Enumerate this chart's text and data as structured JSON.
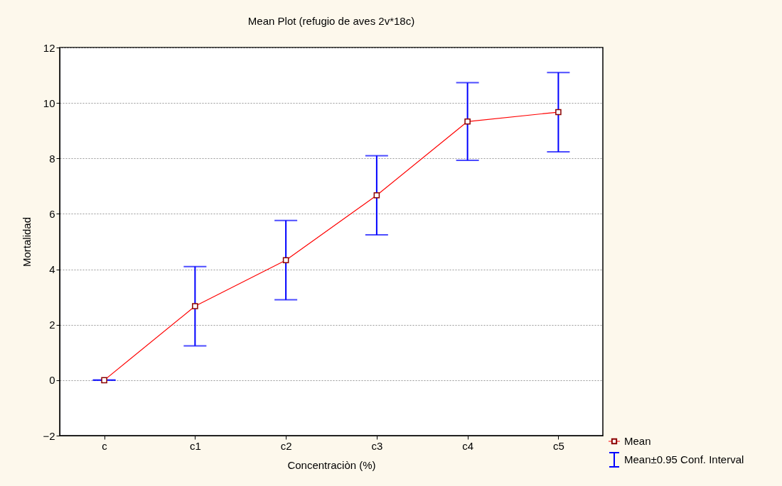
{
  "chart_data": {
    "type": "line",
    "title": "Mean Plot (refugio de aves 2v*18c)",
    "xlabel": "Concentraciòn (%)",
    "ylabel": "Mortalidad",
    "categories": [
      "c",
      "c1",
      "c2",
      "c3",
      "c4",
      "c5"
    ],
    "series": [
      {
        "name": "Mean",
        "color": "#ff0000",
        "values": [
          0,
          2.67,
          4.33,
          6.67,
          9.33,
          9.67
        ],
        "errors": [
          0,
          1.43,
          1.43,
          1.43,
          1.4,
          1.43
        ]
      }
    ],
    "annotations": [
      "Mean±0.95 Conf. Interval"
    ],
    "ylim": [
      -2,
      12
    ],
    "yticks": [
      -2,
      0,
      2,
      4,
      6,
      8,
      10,
      12
    ],
    "grid": "y",
    "legend": "bottom right",
    "marker": "square",
    "line_style": "solid"
  }
}
